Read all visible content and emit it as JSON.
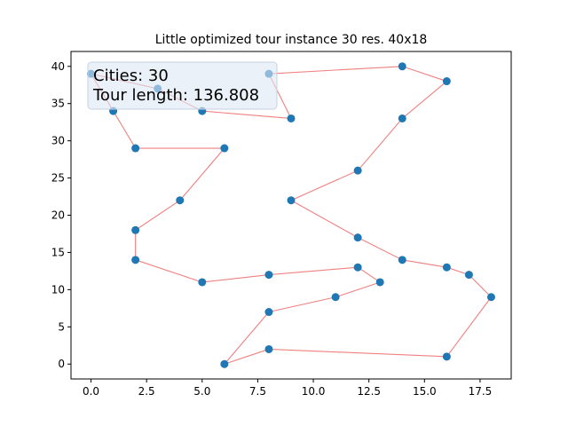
{
  "chart_data": {
    "type": "line",
    "title": "Little optimized tour instance 30 res. 40x18",
    "xlabel": "",
    "ylabel": "",
    "xlim": [
      -0.9,
      18.9
    ],
    "ylim": [
      -2,
      42
    ],
    "x_ticks": [
      0,
      2.5,
      5,
      7.5,
      10,
      12.5,
      15,
      17.5
    ],
    "x_tick_labels": [
      "0.0",
      "2.5",
      "5.0",
      "7.5",
      "10.0",
      "12.5",
      "15.0",
      "17.5"
    ],
    "y_ticks": [
      0,
      5,
      10,
      15,
      20,
      25,
      30,
      35,
      40
    ],
    "y_tick_labels": [
      "0",
      "5",
      "10",
      "15",
      "20",
      "25",
      "30",
      "35",
      "40"
    ],
    "grid": false,
    "point_color": "#1f77b4",
    "line_color": "#f08080",
    "tour": [
      [
        0,
        39
      ],
      [
        3,
        37
      ],
      [
        5,
        34
      ],
      [
        9,
        33
      ],
      [
        8,
        39
      ],
      [
        14,
        40
      ],
      [
        16,
        38
      ],
      [
        14,
        33
      ],
      [
        12,
        26
      ],
      [
        9,
        22
      ],
      [
        12,
        17
      ],
      [
        14,
        14
      ],
      [
        16,
        13
      ],
      [
        17,
        12
      ],
      [
        18,
        9
      ],
      [
        16,
        1
      ],
      [
        8,
        2
      ],
      [
        6,
        0
      ],
      [
        8,
        7
      ],
      [
        11,
        9
      ],
      [
        13,
        11
      ],
      [
        12,
        13
      ],
      [
        8,
        12
      ],
      [
        5,
        11
      ],
      [
        2,
        14
      ],
      [
        2,
        18
      ],
      [
        4,
        22
      ],
      [
        6,
        29
      ],
      [
        2,
        29
      ],
      [
        1,
        34
      ]
    ],
    "annotation": {
      "line1": "Cities: 30",
      "line2": "Tour length: 136.808"
    }
  }
}
